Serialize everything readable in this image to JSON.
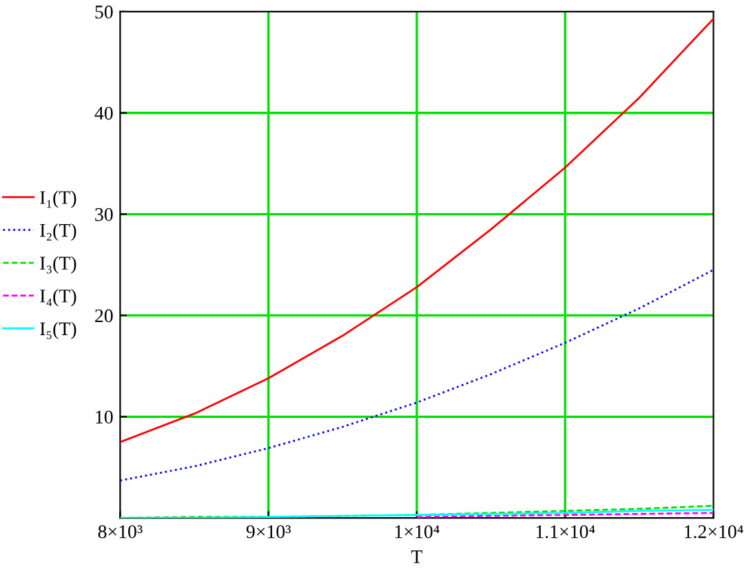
{
  "chart_data": {
    "type": "line",
    "xlabel": "T",
    "x": [
      8000,
      8500,
      9000,
      9500,
      10000,
      10500,
      11000,
      11500,
      12000
    ],
    "series": [
      {
        "name": "I₁(T)",
        "color": "#ff0000",
        "line_style": "solid",
        "values": [
          7.5,
          10.3,
          13.8,
          18.0,
          22.8,
          28.5,
          34.6,
          41.5,
          49.3
        ]
      },
      {
        "name": "I₂(T)",
        "color": "#0000ff",
        "line_style": "dotted",
        "values": [
          3.7,
          5.1,
          6.9,
          9.0,
          11.4,
          14.2,
          17.3,
          20.7,
          24.5
        ]
      },
      {
        "name": "I₃(T)",
        "color": "#00e000",
        "line_style": "dashed",
        "values": [
          0,
          0.1,
          0.1,
          0.2,
          0.3,
          0.5,
          0.7,
          0.9,
          1.2
        ]
      },
      {
        "name": "I₄(T)",
        "color": "#ff00ff",
        "line_style": "dashed",
        "values": [
          null,
          null,
          null,
          null,
          0.1,
          0.2,
          0.3,
          0.4,
          0.5
        ]
      },
      {
        "name": "I₅(T)",
        "color": "#00ffff",
        "line_style": "solid",
        "values": [
          0,
          0,
          0.1,
          0.2,
          0.3,
          0.4,
          0.5,
          0.7,
          0.8
        ]
      }
    ],
    "xlim": [
      8000,
      12000
    ],
    "xticks": [
      {
        "value": 8000,
        "label": "8×10³"
      },
      {
        "value": 9000,
        "label": "9×10³"
      },
      {
        "value": 10000,
        "label": "1×10⁴"
      },
      {
        "value": 11000,
        "label": "1.1×10⁴"
      },
      {
        "value": 12000,
        "label": "1.2×10⁴"
      }
    ],
    "ylim": [
      0,
      50
    ],
    "yticks": [
      10,
      20,
      30,
      40,
      50
    ],
    "grid": true,
    "legend": "left",
    "marker": "none"
  }
}
